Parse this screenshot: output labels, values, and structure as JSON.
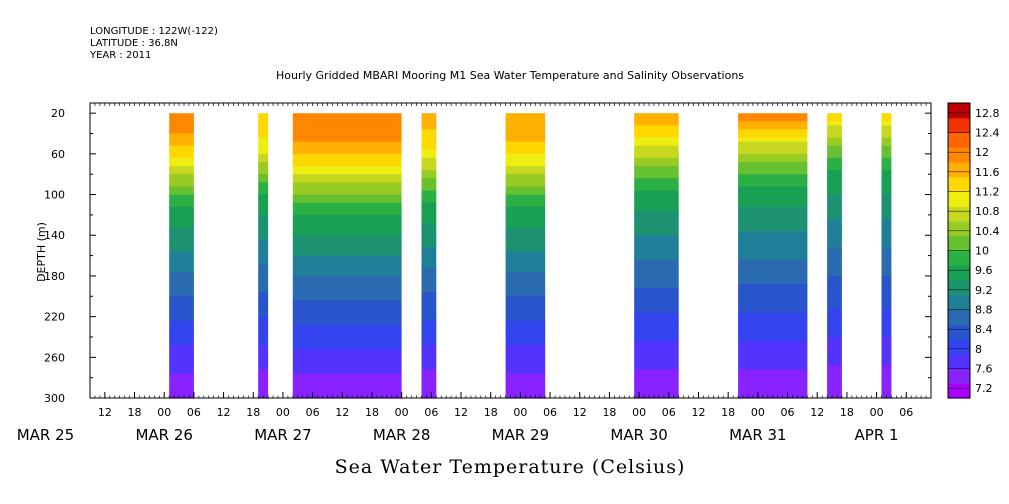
{
  "header": {
    "longitude": "LONGITUDE : 122W(-122)",
    "latitude": "LATITUDE : 36.8N",
    "year": "YEAR : 2011"
  },
  "title": "Hourly Gridded MBARI Mooring M1 Sea Water Temperature and Salinity Observations",
  "bottom_title": "Sea Water Temperature (Celsius)",
  "chart_data": {
    "type": "heatmap",
    "title": "Hourly Gridded MBARI Mooring M1 Sea Water Temperature and Salinity Observations",
    "xlabel": "",
    "ylabel": "DEPTH (m)",
    "x_unit": "hours since MAR 25 00:00 (2011)",
    "xlim": [
      9,
      179
    ],
    "ylim": [
      300,
      10
    ],
    "y_ticks": [
      20,
      60,
      100,
      140,
      180,
      220,
      260,
      300
    ],
    "x_hour_ticks": [
      "12",
      "18",
      "00",
      "06",
      "12",
      "18",
      "00",
      "06",
      "12",
      "18",
      "00",
      "06",
      "12",
      "18",
      "00",
      "06",
      "12",
      "18",
      "00",
      "06",
      "12",
      "18",
      "00",
      "06",
      "12",
      "18",
      "00",
      "06"
    ],
    "x_hour_tick_times": [
      12,
      18,
      24,
      30,
      36,
      42,
      48,
      54,
      60,
      66,
      72,
      78,
      84,
      90,
      96,
      102,
      108,
      114,
      120,
      126,
      132,
      138,
      144,
      150,
      156,
      162,
      168,
      174
    ],
    "date_labels": [
      {
        "label": "MAR 25",
        "hour": 0
      },
      {
        "label": "MAR 26",
        "hour": 24
      },
      {
        "label": "MAR 27",
        "hour": 48
      },
      {
        "label": "MAR 28",
        "hour": 72
      },
      {
        "label": "MAR 29",
        "hour": 96
      },
      {
        "label": "MAR 30",
        "hour": 120
      },
      {
        "label": "MAR 31",
        "hour": 144
      },
      {
        "label": "APR 1",
        "hour": 168
      }
    ],
    "colorbar": {
      "levels": [
        7.2,
        7.6,
        8,
        8.4,
        8.8,
        9.2,
        9.6,
        10,
        10.4,
        10.8,
        11.2,
        11.6,
        12,
        12.4,
        12.8
      ],
      "labeled": [
        7.2,
        7.6,
        8,
        8.4,
        8.8,
        9.2,
        9.6,
        10,
        10.4,
        10.8,
        11.2,
        11.6,
        12,
        12.4,
        12.8
      ]
    },
    "data_segments": [
      {
        "start": 25,
        "end": 29,
        "surface_temp": 12.0,
        "thermocline_depth": 68
      },
      {
        "start": 43,
        "end": 44,
        "surface_temp": 11.4,
        "thermocline_depth": 55
      },
      {
        "start": 50,
        "end": 71,
        "surface_temp": 12.1,
        "thermocline_depth": 75
      },
      {
        "start": 76,
        "end": 78,
        "surface_temp": 11.6,
        "thermocline_depth": 62
      },
      {
        "start": 93,
        "end": 100,
        "surface_temp": 11.8,
        "thermocline_depth": 68
      },
      {
        "start": 119,
        "end": 127,
        "surface_temp": 11.7,
        "thermocline_depth": 50
      },
      {
        "start": 140,
        "end": 153,
        "surface_temp": 12.1,
        "thermocline_depth": 45
      },
      {
        "start": 158,
        "end": 160,
        "surface_temp": 11.6,
        "thermocline_depth": 30
      },
      {
        "start": 169,
        "end": 170,
        "surface_temp": 11.6,
        "thermocline_depth": 30
      }
    ],
    "bottom_temp": 7.3
  }
}
